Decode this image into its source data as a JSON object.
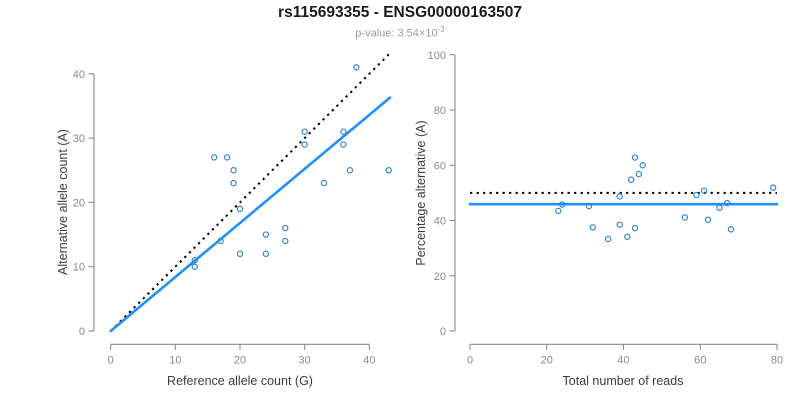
{
  "header": {
    "title": "rs115693355 - ENSG00000163507",
    "subtitle_prefix": "p-value: 3.54×10",
    "subtitle_exponent": "-3"
  },
  "colors": {
    "point_stroke": "#2E86D8",
    "fit_line": "#1E90FF",
    "reference_line": "#000000",
    "axis": "#8A8A8A",
    "tick_label": "#8A8A8A",
    "axis_title": "#3D3D3D",
    "title": "#1A1A1A",
    "subtitle": "#9B9B9B",
    "background": "#FFFFFF"
  },
  "chart_data": [
    {
      "id": "allele-counts",
      "type": "scatter",
      "xlabel": "Reference allele count (G)",
      "ylabel": "Alternative allele count (A)",
      "xticks": [
        0,
        10,
        20,
        30,
        40
      ],
      "yticks": [
        0,
        10,
        20,
        30,
        40
      ],
      "xlim": [
        0,
        43
      ],
      "ylim": [
        0,
        43
      ],
      "grid": false,
      "points": [
        [
          13,
          10
        ],
        [
          13,
          11
        ],
        [
          16,
          27
        ],
        [
          17,
          14
        ],
        [
          18,
          27
        ],
        [
          19,
          23
        ],
        [
          19,
          25
        ],
        [
          20,
          12
        ],
        [
          20,
          19
        ],
        [
          24,
          12
        ],
        [
          24,
          15
        ],
        [
          27,
          14
        ],
        [
          27,
          16
        ],
        [
          30,
          29
        ],
        [
          30,
          31
        ],
        [
          33,
          23
        ],
        [
          36,
          29
        ],
        [
          36,
          31
        ],
        [
          37,
          25
        ],
        [
          38,
          41
        ],
        [
          43,
          25
        ]
      ],
      "lines": [
        {
          "name": "identity-line",
          "style": "dotted",
          "points": [
            [
              0,
              0
            ],
            [
              43.3,
              43.3
            ]
          ]
        },
        {
          "name": "fit-line",
          "style": "solid",
          "points": [
            [
              0,
              0
            ],
            [
              43.2,
              36.3
            ]
          ]
        }
      ]
    },
    {
      "id": "percentage-alternative",
      "type": "scatter",
      "xlabel": "Total number of reads",
      "ylabel": "Percentage alternative (A)",
      "xticks": [
        0,
        20,
        40,
        60,
        80
      ],
      "yticks": [
        0,
        20,
        40,
        60,
        80,
        100
      ],
      "xlim": [
        0,
        80
      ],
      "ylim": [
        0,
        100
      ],
      "grid": false,
      "points": [
        [
          23,
          43.5
        ],
        [
          24,
          45.8
        ],
        [
          31,
          45.2
        ],
        [
          32,
          37.5
        ],
        [
          36,
          33.3
        ],
        [
          39,
          38.5
        ],
        [
          39,
          48.7
        ],
        [
          41,
          34.1
        ],
        [
          42,
          54.8
        ],
        [
          43,
          37.2
        ],
        [
          43,
          62.8
        ],
        [
          44,
          56.8
        ],
        [
          45,
          60
        ],
        [
          56,
          41.1
        ],
        [
          59,
          49.2
        ],
        [
          61,
          50.8
        ],
        [
          62,
          40.3
        ],
        [
          65,
          44.6
        ],
        [
          67,
          46.3
        ],
        [
          68,
          36.8
        ],
        [
          79,
          51.9
        ]
      ],
      "lines": [
        {
          "name": "expected-line",
          "style": "dotted",
          "points": [
            [
              0,
              50
            ],
            [
              80,
              50
            ]
          ]
        },
        {
          "name": "mean-line",
          "style": "solid",
          "points": [
            [
              0,
              45.9
            ],
            [
              80,
              45.9
            ]
          ]
        }
      ]
    }
  ]
}
